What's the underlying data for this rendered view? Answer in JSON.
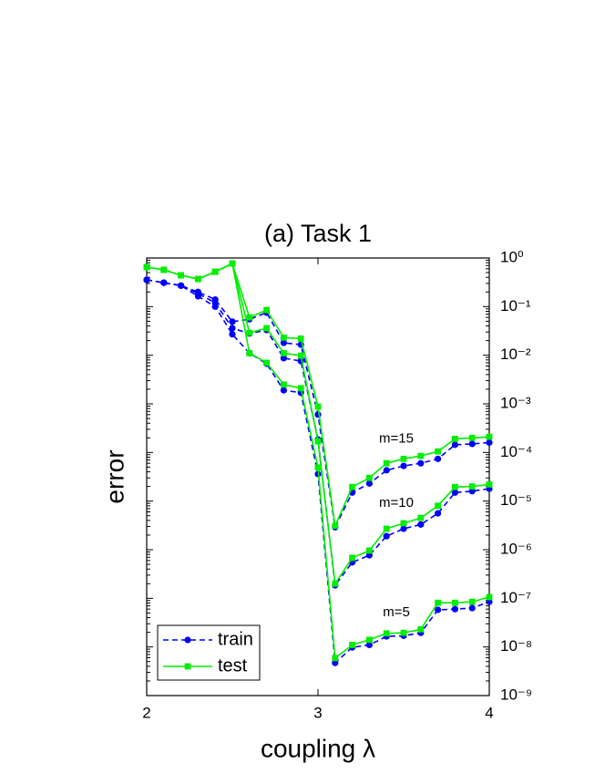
{
  "chart_data": {
    "type": "line",
    "title": "(a) Task 1",
    "xlabel": "coupling λ",
    "ylabel": "error",
    "log_y": true,
    "x": [
      2.0,
      2.1,
      2.2,
      2.3,
      2.4,
      2.5,
      2.6,
      2.7,
      2.8,
      2.9,
      3.0,
      3.1,
      3.2,
      3.3,
      3.4,
      3.5,
      3.6,
      3.7,
      3.8,
      3.9,
      4.0
    ],
    "xlim": [
      2,
      4
    ],
    "xticks": [
      2,
      3,
      4
    ],
    "ylim": [
      1e-09,
      1
    ],
    "yticks": [
      {
        "value": 1e-09,
        "label": "10⁻⁹"
      },
      {
        "value": 1e-08,
        "label": "10⁻⁸"
      },
      {
        "value": 1e-07,
        "label": "10⁻⁷"
      },
      {
        "value": 1e-06,
        "label": "10⁻⁶"
      },
      {
        "value": 1e-05,
        "label": "10⁻⁵"
      },
      {
        "value": 0.0001,
        "label": "10⁻⁴"
      },
      {
        "value": 0.001,
        "label": "10⁻³"
      },
      {
        "value": 0.01,
        "label": "10⁻²"
      },
      {
        "value": 0.1,
        "label": "10⁻¹"
      },
      {
        "value": 1,
        "label": "10⁰"
      }
    ],
    "legend": [
      {
        "name": "train",
        "color": "#0000ff",
        "marker": "circle",
        "dash": true
      },
      {
        "name": "test",
        "color": "#00ee00",
        "marker": "square",
        "dash": false
      }
    ],
    "legend_position": "lower left",
    "groups": [
      {
        "label": "m=15",
        "train": [
          0.355,
          0.31,
          0.27,
          0.2,
          0.14,
          0.049,
          0.055,
          0.075,
          0.018,
          0.0165,
          0.0006,
          2.9e-06,
          1.5e-05,
          2.3e-05,
          4.3e-05,
          5.3e-05,
          6e-05,
          7.4e-05,
          0.000144,
          0.00015,
          0.00016
        ],
        "test": [
          0.65,
          0.57,
          0.44,
          0.37,
          0.52,
          0.77,
          0.06,
          0.085,
          0.023,
          0.022,
          0.00088,
          3.1e-06,
          1.95e-05,
          3e-05,
          6e-05,
          7.4e-05,
          8.5e-05,
          0.000105,
          0.00019,
          0.0002,
          0.00021
        ]
      },
      {
        "label": "m=10",
        "train": [
          0.355,
          0.31,
          0.27,
          0.186,
          0.12,
          0.036,
          0.028,
          0.033,
          0.0087,
          0.0076,
          0.000185,
          1.85e-07,
          5.5e-07,
          7.7e-07,
          1.9e-06,
          2.7e-06,
          3.3e-06,
          5.6e-06,
          1.5e-05,
          1.6e-05,
          1.8e-05
        ],
        "test": [
          0.65,
          0.57,
          0.44,
          0.37,
          0.52,
          0.77,
          0.029,
          0.036,
          0.011,
          0.0098,
          0.00017,
          2e-07,
          6.8e-07,
          9.6e-07,
          2.7e-06,
          3.5e-06,
          4.5e-06,
          8e-06,
          1.95e-05,
          2e-05,
          2.2e-05
        ]
      },
      {
        "label": "m=5",
        "train": [
          0.355,
          0.31,
          0.27,
          0.163,
          0.1,
          0.027,
          0.011,
          0.0067,
          0.0019,
          0.0017,
          3.6e-05,
          4.7e-09,
          9.8e-09,
          1.1e-08,
          1.65e-08,
          1.7e-08,
          1.95e-08,
          5.8e-08,
          6e-08,
          6.3e-08,
          8.5e-08
        ],
        "test": [
          0.65,
          0.57,
          0.44,
          0.37,
          0.52,
          0.77,
          0.011,
          0.007,
          0.0025,
          0.0021,
          4.9e-05,
          5.9e-09,
          1.1e-08,
          1.4e-08,
          1.9e-08,
          1.95e-08,
          2.3e-08,
          8.1e-08,
          8.1e-08,
          8.5e-08,
          1.06e-07
        ]
      }
    ]
  }
}
